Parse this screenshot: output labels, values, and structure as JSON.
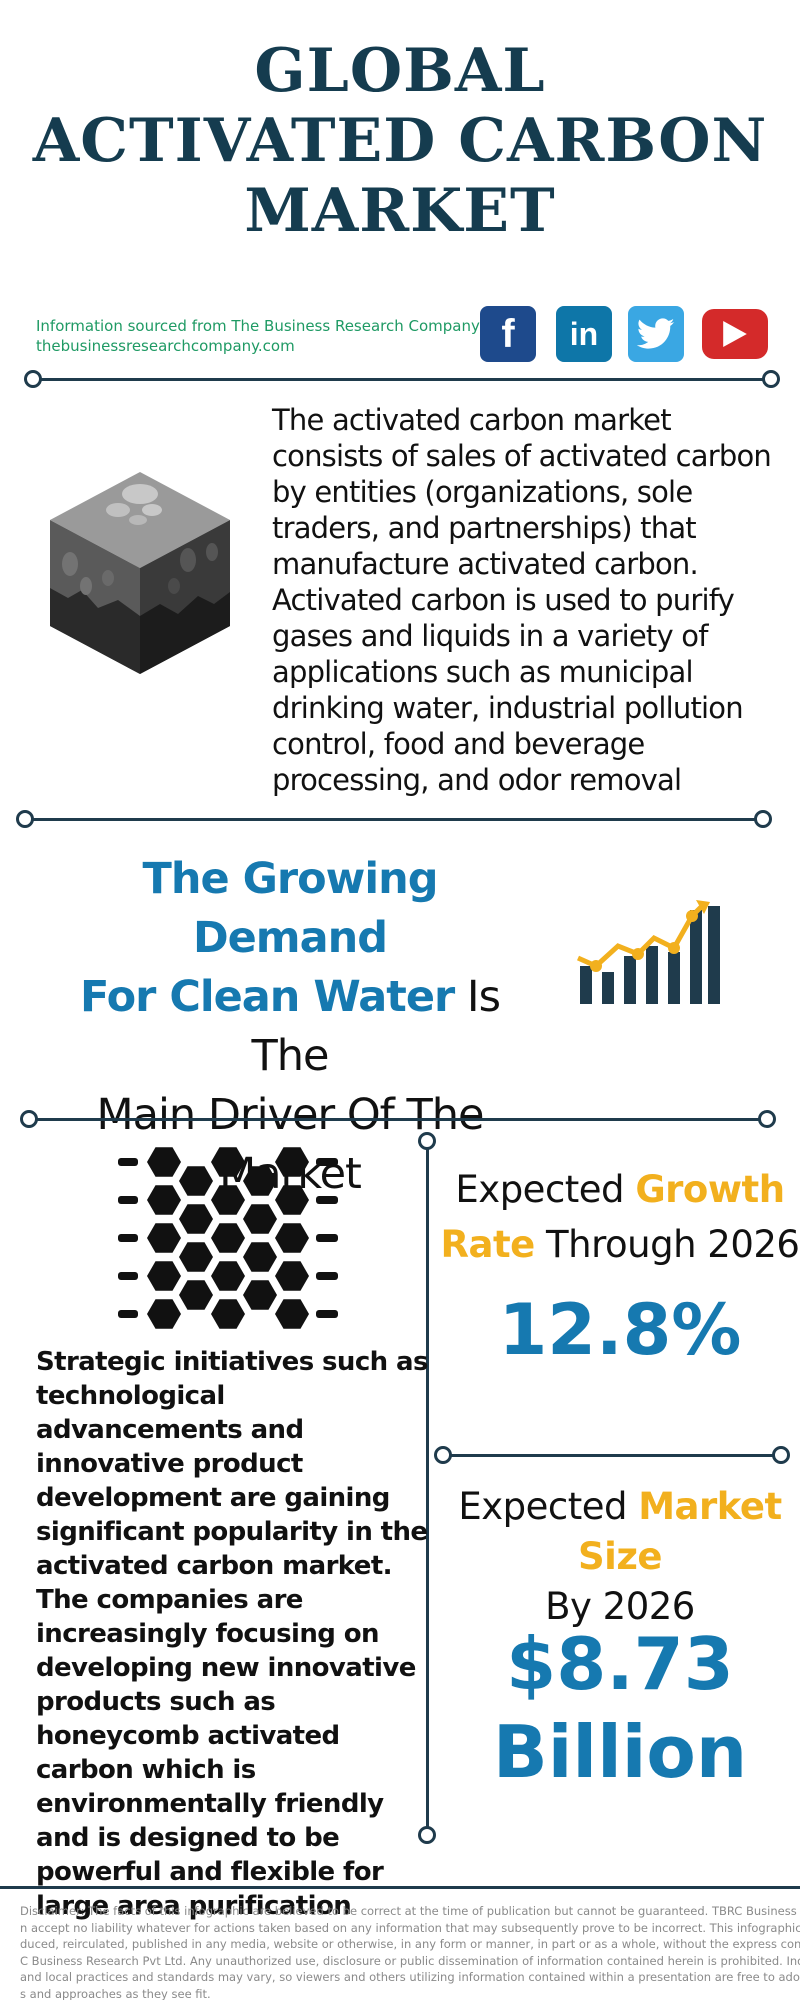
{
  "title": {
    "line1": "GLOBAL",
    "line2": "ACTIVATED CARBON",
    "line3": "MARKET"
  },
  "source": {
    "line1": "Information sourced from The Business Research Company",
    "line2": "thebusinessresearchcompany.com"
  },
  "social": {
    "facebook": "f",
    "linkedin": "in",
    "icons": [
      "facebook-icon",
      "linkedin-icon",
      "twitter-icon",
      "youtube-icon"
    ]
  },
  "intro": "The activated carbon market consists of sales of activated carbon by entities (organizations, sole traders, and partnerships) that manufacture activated carbon. Activated carbon is used to purify gases and liquids in a variety of applications such as municipal drinking water, industrial pollution control, food and beverage processing, and odor removal",
  "driver": {
    "highlight1": "The Growing Demand",
    "highlight2": "For Clean Water",
    "rest1": " Is The",
    "rest2": "Main Driver Of The",
    "rest3": "Market"
  },
  "strategic": "Strategic initiatives such as technological advancements and innovative product development are gaining significant popularity in the activated carbon market. The companies are increasingly focusing on developing new innovative products such as honeycomb activated carbon which is environmentally friendly and is designed to be powerful and flexible for large area purification",
  "growth": {
    "label_pre": "Expected ",
    "label_hl1": "Growth",
    "label_hl2": "Rate",
    "label_post": " Through 2026",
    "value": "12.8%"
  },
  "market_size": {
    "label_pre": "Expected ",
    "label_hl": "Market Size",
    "label_line2": "By 2026",
    "value_line1": "$8.73",
    "value_line2": "Billion"
  },
  "disclaimer": {
    "lines": [
      "Disclaimer: The facts of this infographic are believed to be correct at the time of publication but cannot be guaranteed. TBRC Business Research Pvt Ltd c",
      "n accept no liability whatever for actions taken based on any information that may subsequently prove to be incorrect. This infographic should not be repr",
      "duced, reirculated, published in any media, website or otherwise, in any form or manner, in part or as a whole, without the express consent in writing of TB",
      "C Business Research Pvt Ltd. Any unauthorized use, disclosure or public dissemination of information contained herein is prohibited. Individual situations",
      "and local practices and standards may vary, so viewers and others utilizing information contained within a presentation are free to adopt differing standar",
      "s and approaches as they see fit."
    ]
  },
  "colors": {
    "title": "#153c4f",
    "accent_blue": "#1679b0",
    "accent_gold": "#f2b01e",
    "source_green": "#1f9a64",
    "divider": "#1f3b4c"
  }
}
